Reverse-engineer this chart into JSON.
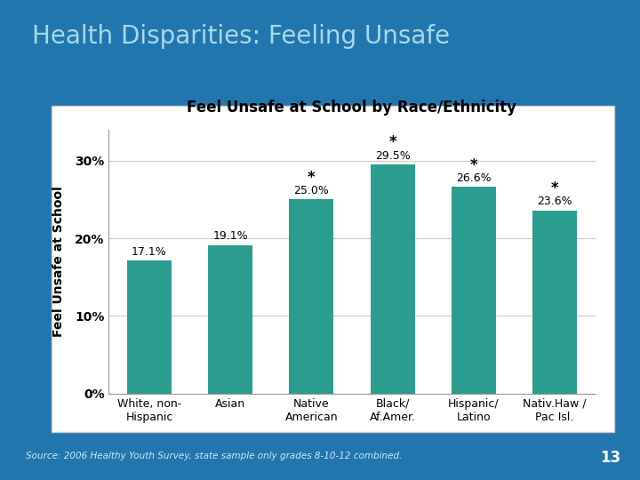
{
  "title_slide": "Health Disparities: Feeling Unsafe",
  "chart_title": "Feel Unsafe at School by Race/Ethnicity",
  "ylabel": "Feel Unsafe at School",
  "categories": [
    "White, non-\nHispanic",
    "Asian",
    "Native\nAmerican",
    "Black/\nAf.Amer.",
    "Hispanic/\nLatino",
    "Nativ.Haw /\nPac Isl."
  ],
  "values": [
    17.1,
    19.1,
    25.0,
    29.5,
    26.6,
    23.6
  ],
  "significant": [
    false,
    false,
    true,
    true,
    true,
    true
  ],
  "bar_color": "#2a9d8f",
  "bg_slide": "#2176ae",
  "bg_chart": "#ffffff",
  "title_color": "#a8d8ea",
  "yticks": [
    0,
    10,
    20,
    30
  ],
  "ytick_labels": [
    "0%",
    "10%",
    "20%",
    "30%"
  ],
  "ylim": [
    0,
    34
  ],
  "source_text": "Source: 2006 Healthy Youth Survey, state sample only grades 8-10-12 combined.",
  "page_number": "13"
}
